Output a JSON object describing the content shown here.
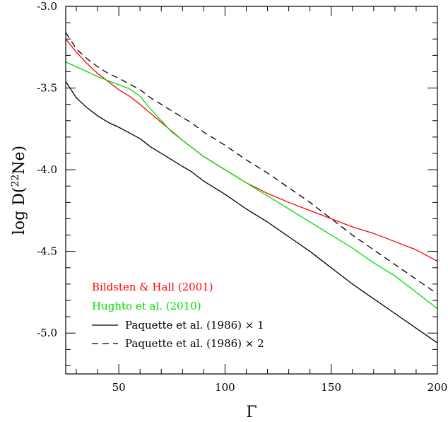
{
  "chart_data": {
    "type": "line",
    "xlabel": "Γ",
    "ylabel": "log D(²²Ne)",
    "xlim": [
      25,
      200
    ],
    "ylim": [
      -5.25,
      -3.0
    ],
    "xticks": {
      "major": [
        50,
        100,
        150,
        200
      ],
      "minor_step": 10
    },
    "yticks": {
      "major": [
        -3.0,
        -3.5,
        -4.0,
        -4.5,
        -5.0
      ],
      "minor_step": 0.1
    },
    "xtick_labels": [
      "50",
      "100",
      "150",
      "200"
    ],
    "ytick_labels": [
      "-3.0",
      "-3.5",
      "-4.0",
      "-4.5",
      "-5.0"
    ],
    "legend_position": "bottom-left",
    "series": [
      {
        "name": "Bildsten & Hall (2001)",
        "color": "#ff0000",
        "style": "solid",
        "legend_line": false,
        "x": [
          25,
          30,
          35,
          40,
          45,
          50,
          55,
          60,
          70,
          80,
          90,
          100,
          110,
          120,
          130,
          140,
          150,
          160,
          170,
          180,
          190,
          200
        ],
        "y": [
          -3.2,
          -3.28,
          -3.35,
          -3.41,
          -3.46,
          -3.51,
          -3.55,
          -3.6,
          -3.71,
          -3.82,
          -3.92,
          -4.0,
          -4.08,
          -4.145,
          -4.2,
          -4.25,
          -4.3,
          -4.35,
          -4.39,
          -4.44,
          -4.49,
          -4.56
        ]
      },
      {
        "name": "Hughto et al. (2010)",
        "color": "#00dd00",
        "style": "solid",
        "legend_line": false,
        "x": [
          25,
          30,
          35,
          40,
          45,
          50,
          55,
          60,
          65,
          70,
          75,
          80,
          85,
          90,
          100,
          110,
          120,
          130,
          140,
          150,
          160,
          170,
          180,
          190,
          200
        ],
        "y": [
          -3.34,
          -3.37,
          -3.4,
          -3.43,
          -3.455,
          -3.48,
          -3.505,
          -3.55,
          -3.63,
          -3.7,
          -3.77,
          -3.82,
          -3.87,
          -3.92,
          -4.0,
          -4.08,
          -4.16,
          -4.24,
          -4.32,
          -4.4,
          -4.48,
          -4.57,
          -4.65,
          -4.75,
          -4.85
        ]
      },
      {
        "name": "Paquette et al. (1986) × 1",
        "color": "#000000",
        "style": "solid",
        "legend_line": true,
        "x": [
          25,
          30,
          35,
          40,
          45,
          50,
          55,
          60,
          65,
          70,
          75,
          80,
          84,
          90,
          100,
          110,
          120,
          130,
          140,
          150,
          160,
          170,
          180,
          190,
          200
        ],
        "y": [
          -3.46,
          -3.56,
          -3.62,
          -3.67,
          -3.71,
          -3.74,
          -3.775,
          -3.81,
          -3.86,
          -3.9,
          -3.94,
          -3.98,
          -4.01,
          -4.07,
          -4.15,
          -4.24,
          -4.32,
          -4.41,
          -4.5,
          -4.6,
          -4.7,
          -4.79,
          -4.88,
          -4.97,
          -5.06
        ]
      },
      {
        "name": "Paquette et al. (1986) × 2",
        "color": "#000000",
        "style": "dashed",
        "legend_line": true,
        "x": [
          25,
          30,
          35,
          40,
          45,
          50,
          55,
          60,
          65,
          70,
          75,
          80,
          84,
          90,
          100,
          110,
          120,
          130,
          140,
          150,
          160,
          170,
          180,
          190,
          200
        ],
        "y": [
          -3.16,
          -3.26,
          -3.32,
          -3.37,
          -3.41,
          -3.44,
          -3.475,
          -3.51,
          -3.56,
          -3.6,
          -3.64,
          -3.68,
          -3.71,
          -3.77,
          -3.85,
          -3.94,
          -4.02,
          -4.11,
          -4.2,
          -4.3,
          -4.4,
          -4.49,
          -4.58,
          -4.67,
          -4.76
        ]
      }
    ]
  }
}
